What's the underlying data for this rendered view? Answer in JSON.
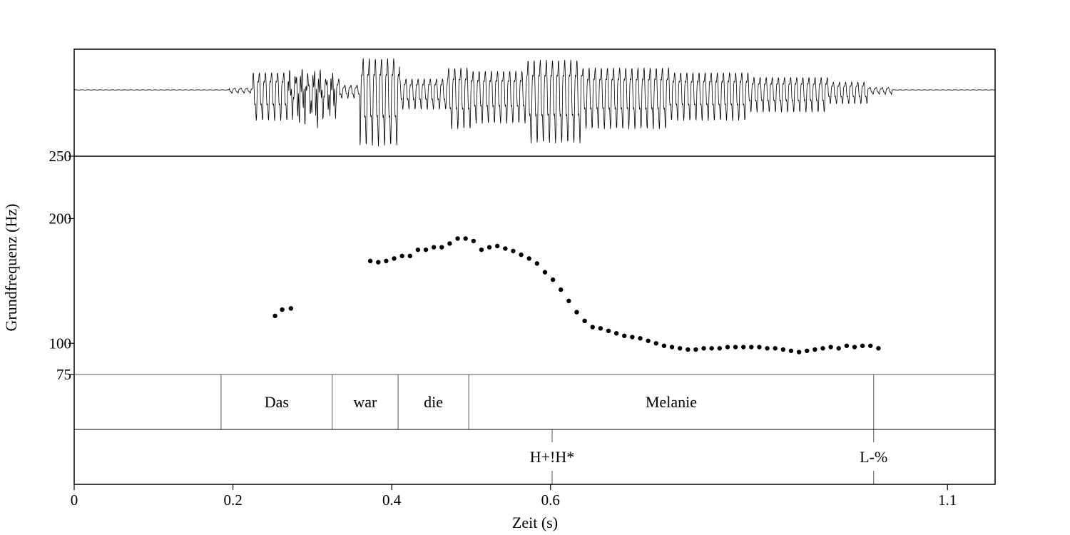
{
  "chart_data": {
    "type": "scatter",
    "xlabel": "Zeit (s)",
    "ylabel": "Grundfrequenz (Hz)",
    "xlim": [
      0,
      1.16
    ],
    "ylim": [
      75,
      250
    ],
    "x_ticks": [
      {
        "value": 0,
        "label": "0"
      },
      {
        "value": 0.2,
        "label": "0.2"
      },
      {
        "value": 0.4,
        "label": "0.4"
      },
      {
        "value": 0.6,
        "label": "0.6"
      },
      {
        "value": 1.1,
        "label": "1.1"
      }
    ],
    "y_ticks": [
      {
        "value": 250,
        "label": "250"
      },
      {
        "value": 200,
        "label": "200"
      },
      {
        "value": 100,
        "label": "100"
      },
      {
        "value": 75,
        "label": "75"
      }
    ],
    "f0": [
      [
        0.253,
        122
      ],
      [
        0.262,
        127
      ],
      [
        0.273,
        128
      ],
      [
        0.373,
        166
      ],
      [
        0.383,
        165
      ],
      [
        0.393,
        166
      ],
      [
        0.403,
        168
      ],
      [
        0.413,
        170
      ],
      [
        0.423,
        170
      ],
      [
        0.433,
        175
      ],
      [
        0.443,
        175
      ],
      [
        0.453,
        177
      ],
      [
        0.463,
        177
      ],
      [
        0.473,
        180
      ],
      [
        0.483,
        184
      ],
      [
        0.493,
        184
      ],
      [
        0.503,
        182
      ],
      [
        0.513,
        175
      ],
      [
        0.523,
        177
      ],
      [
        0.533,
        178
      ],
      [
        0.543,
        176
      ],
      [
        0.553,
        174
      ],
      [
        0.563,
        171
      ],
      [
        0.573,
        168
      ],
      [
        0.583,
        164
      ],
      [
        0.593,
        157
      ],
      [
        0.603,
        151
      ],
      [
        0.613,
        143
      ],
      [
        0.623,
        134
      ],
      [
        0.633,
        125
      ],
      [
        0.643,
        118
      ],
      [
        0.653,
        113
      ],
      [
        0.663,
        112
      ],
      [
        0.673,
        110
      ],
      [
        0.683,
        108
      ],
      [
        0.693,
        106
      ],
      [
        0.703,
        105
      ],
      [
        0.713,
        104
      ],
      [
        0.723,
        102
      ],
      [
        0.733,
        100
      ],
      [
        0.743,
        98
      ],
      [
        0.753,
        97
      ],
      [
        0.763,
        96
      ],
      [
        0.773,
        95
      ],
      [
        0.783,
        95
      ],
      [
        0.793,
        96
      ],
      [
        0.803,
        96
      ],
      [
        0.813,
        96
      ],
      [
        0.823,
        97
      ],
      [
        0.833,
        97
      ],
      [
        0.843,
        97
      ],
      [
        0.853,
        97
      ],
      [
        0.863,
        97
      ],
      [
        0.873,
        96
      ],
      [
        0.883,
        96
      ],
      [
        0.893,
        95
      ],
      [
        0.903,
        94
      ],
      [
        0.913,
        93
      ],
      [
        0.923,
        94
      ],
      [
        0.933,
        95
      ],
      [
        0.943,
        96
      ],
      [
        0.953,
        97
      ],
      [
        0.963,
        96
      ],
      [
        0.973,
        98
      ],
      [
        0.983,
        97
      ],
      [
        0.993,
        98
      ],
      [
        1.003,
        98
      ],
      [
        1.013,
        96
      ]
    ],
    "word_tier": {
      "boundaries": [
        0.185,
        0.325,
        0.408,
        0.497,
        1.007
      ],
      "intervals": [
        {
          "xmin": 0.185,
          "xmax": 0.325,
          "text": "Das"
        },
        {
          "xmin": 0.325,
          "xmax": 0.408,
          "text": "war"
        },
        {
          "xmin": 0.408,
          "xmax": 0.497,
          "text": "die"
        },
        {
          "xmin": 0.497,
          "xmax": 1.007,
          "text": "Melanie"
        }
      ]
    },
    "tone_tier": {
      "points": [
        {
          "time": 0.602,
          "text": "H+!H*"
        },
        {
          "time": 1.007,
          "text": "L-%"
        }
      ]
    }
  }
}
